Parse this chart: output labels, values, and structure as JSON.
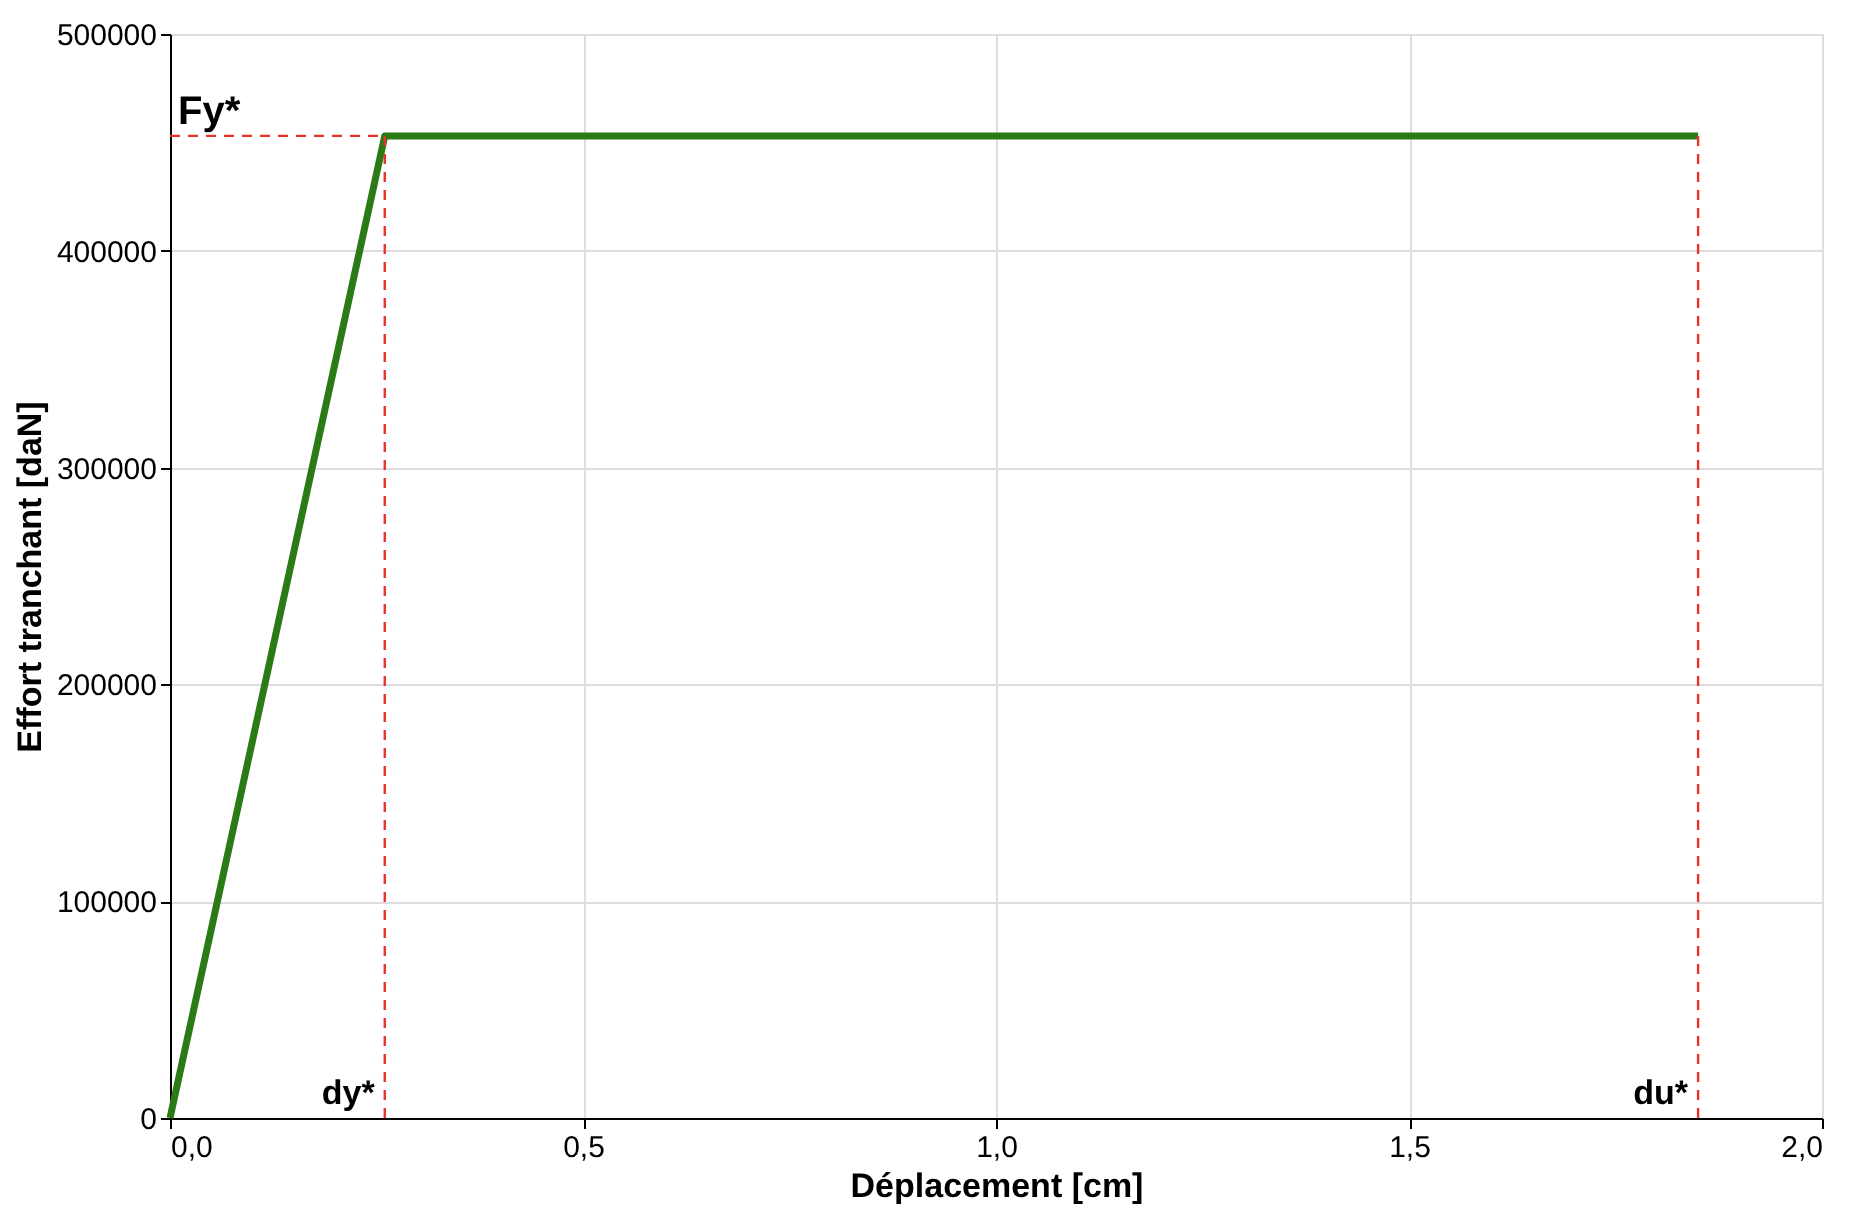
{
  "chart_data": {
    "type": "line",
    "xlabel": "Déplacement [cm]",
    "ylabel": "Effort tranchant [daN]",
    "series": [
      {
        "color": "#2a7a16",
        "x": [
          0,
          0.26,
          1.85
        ],
        "values": [
          0,
          453000,
          453000
        ]
      }
    ],
    "xlim": [
      0,
      2
    ],
    "xticks": [
      {
        "value": 0,
        "label": "0,0"
      },
      {
        "value": 0.5,
        "label": "0,5"
      },
      {
        "value": 1,
        "label": "1,0"
      },
      {
        "value": 1.5,
        "label": "1,5"
      },
      {
        "value": 2,
        "label": "2,0"
      }
    ],
    "ylim": [
      0,
      500000
    ],
    "yticks": [
      0,
      100000,
      200000,
      300000,
      400000,
      500000
    ],
    "ref_lines": [
      {
        "axis": "x",
        "value": 0.26,
        "label": "dy*",
        "color": "#e8332a",
        "line_style": "dashed"
      },
      {
        "axis": "x",
        "value": 1.85,
        "label": "du*",
        "color": "#e8332a",
        "line_style": "dashed"
      },
      {
        "axis": "y",
        "value": 453000,
        "label": "Fy*",
        "color": "#e8332a",
        "line_style": "dashed"
      }
    ],
    "grid": true,
    "marker": "none",
    "line_style": "solid"
  }
}
